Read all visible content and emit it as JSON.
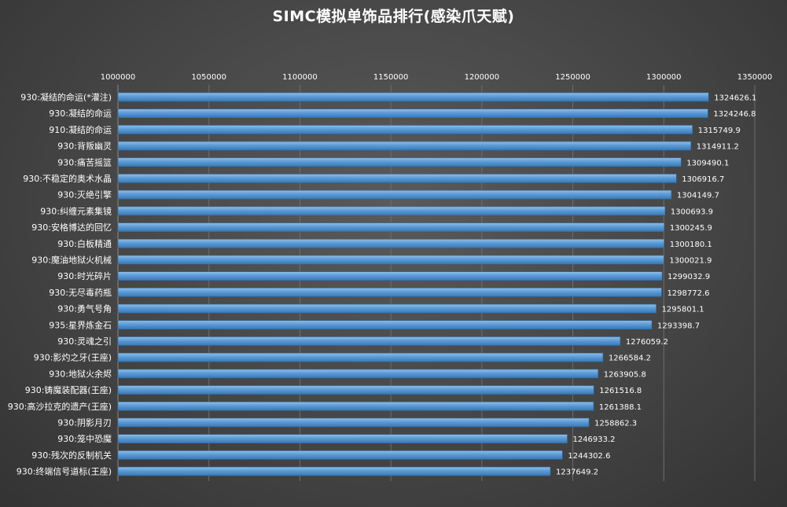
{
  "chart_data": {
    "type": "bar",
    "orientation": "horizontal",
    "title": "SIMC模拟单饰品排行(感染爪天赋)",
    "xlim": [
      1000000,
      1350000
    ],
    "x_ticks": [
      1000000,
      1050000,
      1100000,
      1150000,
      1200000,
      1250000,
      1300000,
      1350000
    ],
    "x_tick_labels": [
      "1000000",
      "1050000",
      "1100000",
      "1150000",
      "1200000",
      "1250000",
      "1300000",
      "1350000"
    ],
    "x_axis_position": "top",
    "grid": true,
    "categories": [
      "930:凝结的命运(*灌注)",
      "930:凝结的命运",
      "910:凝结的命运",
      "930:背叛幽灵",
      "930:痛苦摇篮",
      "930:不稳定的奥术水晶",
      "930:灭绝引擎",
      "930:纠缠元素集镜",
      "930:安格博达的回忆",
      "930:白板精通",
      "930:魔油地狱火机械",
      "930:时光碎片",
      "930:无尽毒药瓶",
      "930:勇气号角",
      "935:星界炼金石",
      "930:灵魂之引",
      "930:影灼之牙(王座)",
      "930:地狱火余烬",
      "930:铸魔装配器(王座)",
      "930:高沙拉克的遗产(王座)",
      "930:阴影月刃",
      "930:笼中恐魔",
      "930:残次的反制机关",
      "930:终端信号道标(王座)"
    ],
    "values": [
      1324626.1,
      1324246.8,
      1315749.9,
      1314911.2,
      1309490.1,
      1306916.7,
      1304149.7,
      1300693.9,
      1300245.9,
      1300180.1,
      1300021.9,
      1299032.9,
      1298772.6,
      1295801.1,
      1293398.7,
      1276059.2,
      1266584.2,
      1263905.8,
      1261516.8,
      1261388.1,
      1258862.3,
      1246933.2,
      1244302.6,
      1237649.2
    ],
    "value_labels": [
      "1324626.1",
      "1324246.8",
      "1315749.9",
      "1314911.2",
      "1309490.1",
      "1306916.7",
      "1304149.7",
      "1300693.9",
      "1300245.9",
      "1300180.1",
      "1300021.9",
      "1299032.9",
      "1298772.6",
      "1295801.1",
      "1293398.7",
      "1276059.2",
      "1266584.2",
      "1263905.8",
      "1261516.8",
      "1261388.1",
      "1258862.3",
      "1246933.2",
      "1244302.6",
      "1237649.2"
    ],
    "bar_color": "#5b9bd5",
    "background_color": "#454545"
  }
}
